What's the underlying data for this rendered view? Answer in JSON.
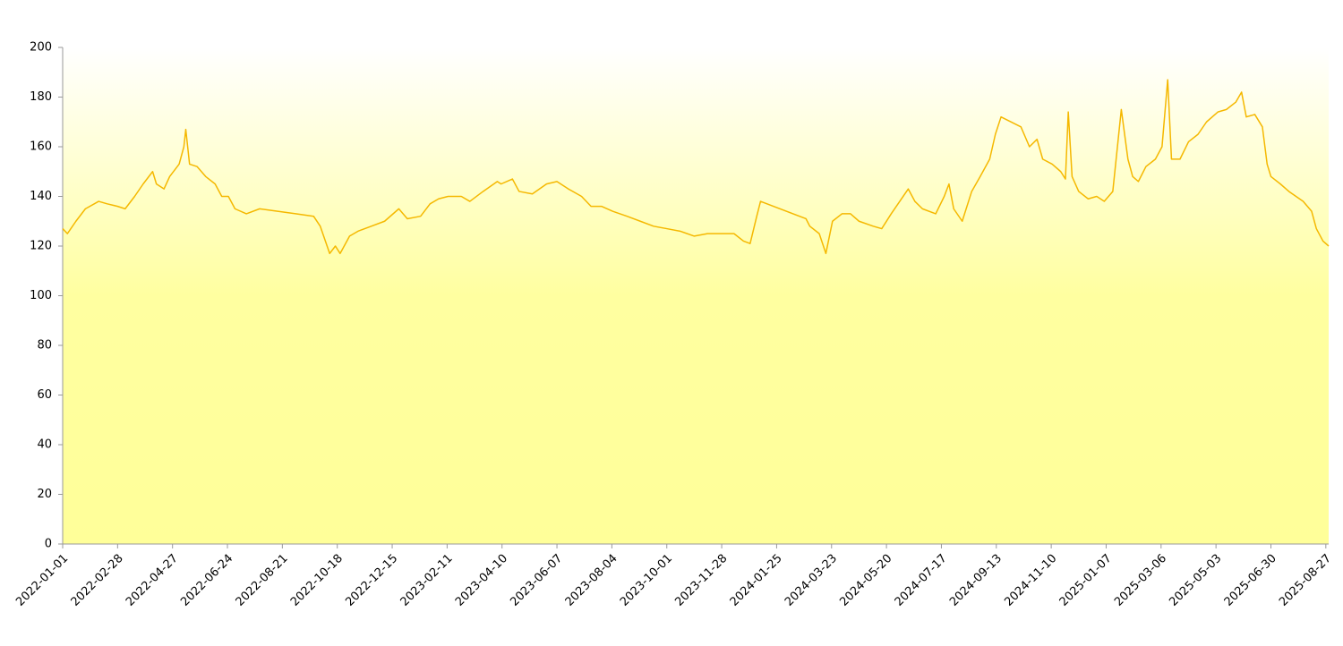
{
  "chart_data": {
    "type": "line",
    "x": [
      "2022-01-01",
      "2022-01-06",
      "2022-01-15",
      "2022-01-25",
      "2022-02-08",
      "2022-02-17",
      "2022-02-28",
      "2022-03-08",
      "2022-03-18",
      "2022-03-27",
      "2022-04-06",
      "2022-04-10",
      "2022-04-18",
      "2022-04-24",
      "2022-05-04",
      "2022-05-09",
      "2022-05-11",
      "2022-05-15",
      "2022-05-23",
      "2022-06-01",
      "2022-06-11",
      "2022-06-18",
      "2022-06-25",
      "2022-07-02",
      "2022-07-14",
      "2022-07-28",
      "2022-08-16",
      "2022-09-04",
      "2022-09-23",
      "2022-09-30",
      "2022-10-10",
      "2022-10-16",
      "2022-10-21",
      "2022-10-31",
      "2022-11-09",
      "2022-11-23",
      "2022-12-07",
      "2022-12-22",
      "2022-12-31",
      "2023-01-14",
      "2023-01-24",
      "2023-02-02",
      "2023-02-12",
      "2023-02-26",
      "2023-03-07",
      "2023-03-21",
      "2023-04-05",
      "2023-04-09",
      "2023-04-21",
      "2023-04-28",
      "2023-05-12",
      "2023-05-27",
      "2023-06-07",
      "2023-06-19",
      "2023-07-03",
      "2023-07-13",
      "2023-07-24",
      "2023-08-05",
      "2023-08-20",
      "2023-09-03",
      "2023-09-17",
      "2023-10-01",
      "2023-10-15",
      "2023-10-30",
      "2023-11-13",
      "2023-11-27",
      "2023-12-11",
      "2023-12-21",
      "2023-12-28",
      "2024-01-04",
      "2024-01-08",
      "2024-02-25",
      "2024-02-29",
      "2024-03-10",
      "2024-03-17",
      "2024-03-24",
      "2024-04-03",
      "2024-04-12",
      "2024-04-21",
      "2024-05-06",
      "2024-05-15",
      "2024-05-25",
      "2024-06-03",
      "2024-06-12",
      "2024-06-19",
      "2024-06-27",
      "2024-07-11",
      "2024-07-20",
      "2024-07-25",
      "2024-07-30",
      "2024-08-08",
      "2024-08-18",
      "2024-08-27",
      "2024-09-06",
      "2024-09-12",
      "2024-09-18",
      "2024-10-09",
      "2024-10-18",
      "2024-10-26",
      "2024-11-01",
      "2024-11-11",
      "2024-11-20",
      "2024-11-25",
      "2024-11-28",
      "2024-12-02",
      "2024-12-09",
      "2024-12-19",
      "2024-12-28",
      "2025-01-05",
      "2025-01-14",
      "2025-01-23",
      "2025-01-30",
      "2025-02-04",
      "2025-02-10",
      "2025-02-18",
      "2025-02-28",
      "2025-03-07",
      "2025-03-13",
      "2025-03-17",
      "2025-03-26",
      "2025-04-04",
      "2025-04-14",
      "2025-04-23",
      "2025-05-05",
      "2025-05-14",
      "2025-05-24",
      "2025-05-30",
      "2025-06-04",
      "2025-06-13",
      "2025-06-21",
      "2025-06-26",
      "2025-06-30",
      "2025-07-10",
      "2025-07-19",
      "2025-08-03",
      "2025-08-12",
      "2025-08-17",
      "2025-08-24",
      "2025-08-30"
    ],
    "series": [
      {
        "color": "#f5b800",
        "values": [
          127,
          125,
          130,
          135,
          138,
          137,
          136,
          135,
          140,
          145,
          150,
          145,
          143,
          148,
          153,
          160,
          167,
          153,
          152,
          148,
          145,
          140,
          140,
          135,
          133,
          135,
          134,
          133,
          132,
          128,
          117,
          120,
          117,
          124,
          126,
          128,
          130,
          135,
          131,
          132,
          137,
          139,
          140,
          140,
          138,
          142,
          146,
          145,
          147,
          142,
          141,
          145,
          146,
          143,
          140,
          136,
          136,
          134,
          132,
          130,
          128,
          127,
          126,
          124,
          125,
          125,
          125,
          122,
          121,
          132,
          138,
          131,
          128,
          125,
          117,
          130,
          133,
          133,
          130,
          128,
          127,
          133,
          138,
          143,
          138,
          135,
          133,
          140,
          145,
          135,
          130,
          142,
          148,
          155,
          165,
          172,
          168,
          160,
          163,
          155,
          153,
          150,
          147,
          174,
          148,
          142,
          139,
          140,
          138,
          142,
          175,
          155,
          148,
          146,
          152,
          155,
          160,
          187,
          155,
          155,
          162,
          165,
          170,
          174,
          175,
          178,
          182,
          172,
          173,
          168,
          153,
          148,
          145,
          142,
          138,
          134,
          127,
          122,
          120
        ]
      }
    ],
    "xlim": [
      "2022-01-01",
      "2025-08-30"
    ],
    "xticks": [
      "2022-01-01",
      "2022-02-28",
      "2022-04-27",
      "2022-06-24",
      "2022-08-21",
      "2022-10-18",
      "2022-12-15",
      "2023-02-11",
      "2023-04-10",
      "2023-06-07",
      "2023-08-04",
      "2023-10-01",
      "2023-11-28",
      "2024-01-25",
      "2024-03-23",
      "2024-05-20",
      "2024-07-17",
      "2024-09-13",
      "2024-11-10",
      "2025-01-07",
      "2025-03-06",
      "2025-05-03",
      "2025-06-30",
      "2025-08-27"
    ],
    "ylim": [
      0,
      200
    ],
    "yticks": [
      0,
      20,
      40,
      60,
      80,
      100,
      120,
      140,
      160,
      180,
      200
    ]
  }
}
